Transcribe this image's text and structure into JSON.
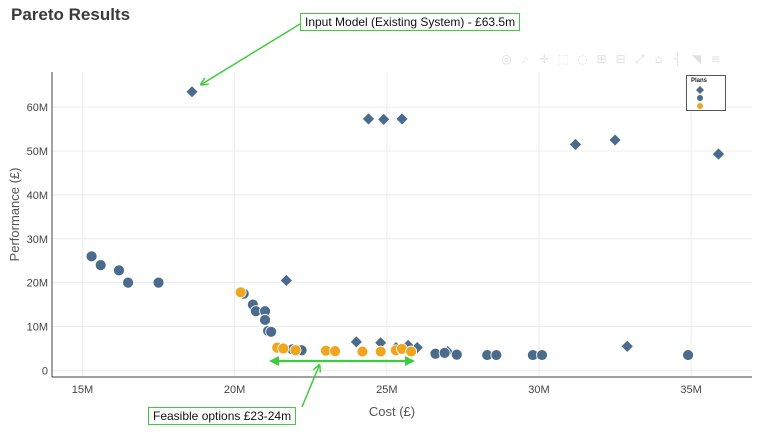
{
  "page": {
    "title": "Pareto Results"
  },
  "toolbar": {
    "icons": [
      "camera-icon",
      "zoom-icon",
      "pan-icon",
      "box-select-icon",
      "lasso-select-icon",
      "zoom-in-icon",
      "zoom-out-icon",
      "autoscale-icon",
      "reset-axes-icon",
      "spike-lines-icon",
      "hover-closest-icon",
      "hover-compare-icon"
    ],
    "glyphs": [
      "◎",
      "⌕",
      "✛",
      "⬚",
      "◌",
      "⊞",
      "⊟",
      "⤢",
      "⌂",
      "┤",
      "◥",
      "≡"
    ]
  },
  "annotations": {
    "input_model": "Input Model (Existing System) - £63.5m",
    "feasible": "Feasible options £23-24m"
  },
  "colors": {
    "plan_1": "#4a6b8c",
    "plan_2": "#4a6b8c",
    "plan_3": "#f0a51e",
    "callout": "#3ecc3e",
    "arrow_range": "#3ecc3e"
  },
  "chart_data": {
    "type": "scatter",
    "title": "Pareto Results",
    "xlabel": "Cost (£)",
    "ylabel": "Performance (£)",
    "xlim": [
      14000000,
      37000000
    ],
    "ylim": [
      -1500000,
      68000000
    ],
    "xticks": [
      15000000,
      20000000,
      25000000,
      30000000,
      35000000
    ],
    "xtick_labels": [
      "15M",
      "20M",
      "25M",
      "30M",
      "35M"
    ],
    "yticks": [
      0,
      10000000,
      20000000,
      30000000,
      40000000,
      50000000,
      60000000
    ],
    "ytick_labels": [
      "0",
      "10M",
      "20M",
      "30M",
      "40M",
      "50M",
      "60M"
    ],
    "grid": true,
    "legend": {
      "title": "Plans",
      "position": "top-right"
    },
    "series": [
      {
        "marker": "diamond",
        "color": "#4a6b8c",
        "points": [
          [
            18600000,
            63500000
          ],
          [
            24400000,
            57300000
          ],
          [
            24900000,
            57200000
          ],
          [
            25500000,
            57300000
          ],
          [
            31200000,
            51500000
          ],
          [
            32500000,
            52500000
          ],
          [
            35900000,
            49300000
          ],
          [
            21700000,
            20500000
          ],
          [
            24000000,
            6500000
          ],
          [
            24800000,
            6300000
          ],
          [
            25300000,
            5200000
          ],
          [
            25700000,
            5700000
          ],
          [
            26000000,
            5200000
          ],
          [
            32900000,
            5500000
          ],
          [
            27000000,
            4300000
          ]
        ]
      },
      {
        "marker": "circle",
        "color": "#4a6b8c",
        "points": [
          [
            15300000,
            26000000
          ],
          [
            15600000,
            24000000
          ],
          [
            16200000,
            22800000
          ],
          [
            16500000,
            20000000
          ],
          [
            17500000,
            20000000
          ],
          [
            20300000,
            17500000
          ],
          [
            20600000,
            15000000
          ],
          [
            20700000,
            13500000
          ],
          [
            21000000,
            13500000
          ],
          [
            21000000,
            11500000
          ],
          [
            21100000,
            9000000
          ],
          [
            21200000,
            8800000
          ],
          [
            21600000,
            5000000
          ],
          [
            21900000,
            4800000
          ],
          [
            22200000,
            4600000
          ],
          [
            26600000,
            3800000
          ],
          [
            26900000,
            4000000
          ],
          [
            27300000,
            3600000
          ],
          [
            28300000,
            3500000
          ],
          [
            28600000,
            3500000
          ],
          [
            29800000,
            3500000
          ],
          [
            30100000,
            3500000
          ],
          [
            34900000,
            3500000
          ]
        ]
      },
      {
        "marker": "circle",
        "color": "#f0a51e",
        "points": [
          [
            20200000,
            17800000
          ],
          [
            21400000,
            5200000
          ],
          [
            21600000,
            5000000
          ],
          [
            22000000,
            4600000
          ],
          [
            23000000,
            4500000
          ],
          [
            23300000,
            4400000
          ],
          [
            24200000,
            4300000
          ],
          [
            24800000,
            4300000
          ],
          [
            25300000,
            4600000
          ],
          [
            25500000,
            4900000
          ],
          [
            25800000,
            4300000
          ]
        ]
      }
    ]
  }
}
